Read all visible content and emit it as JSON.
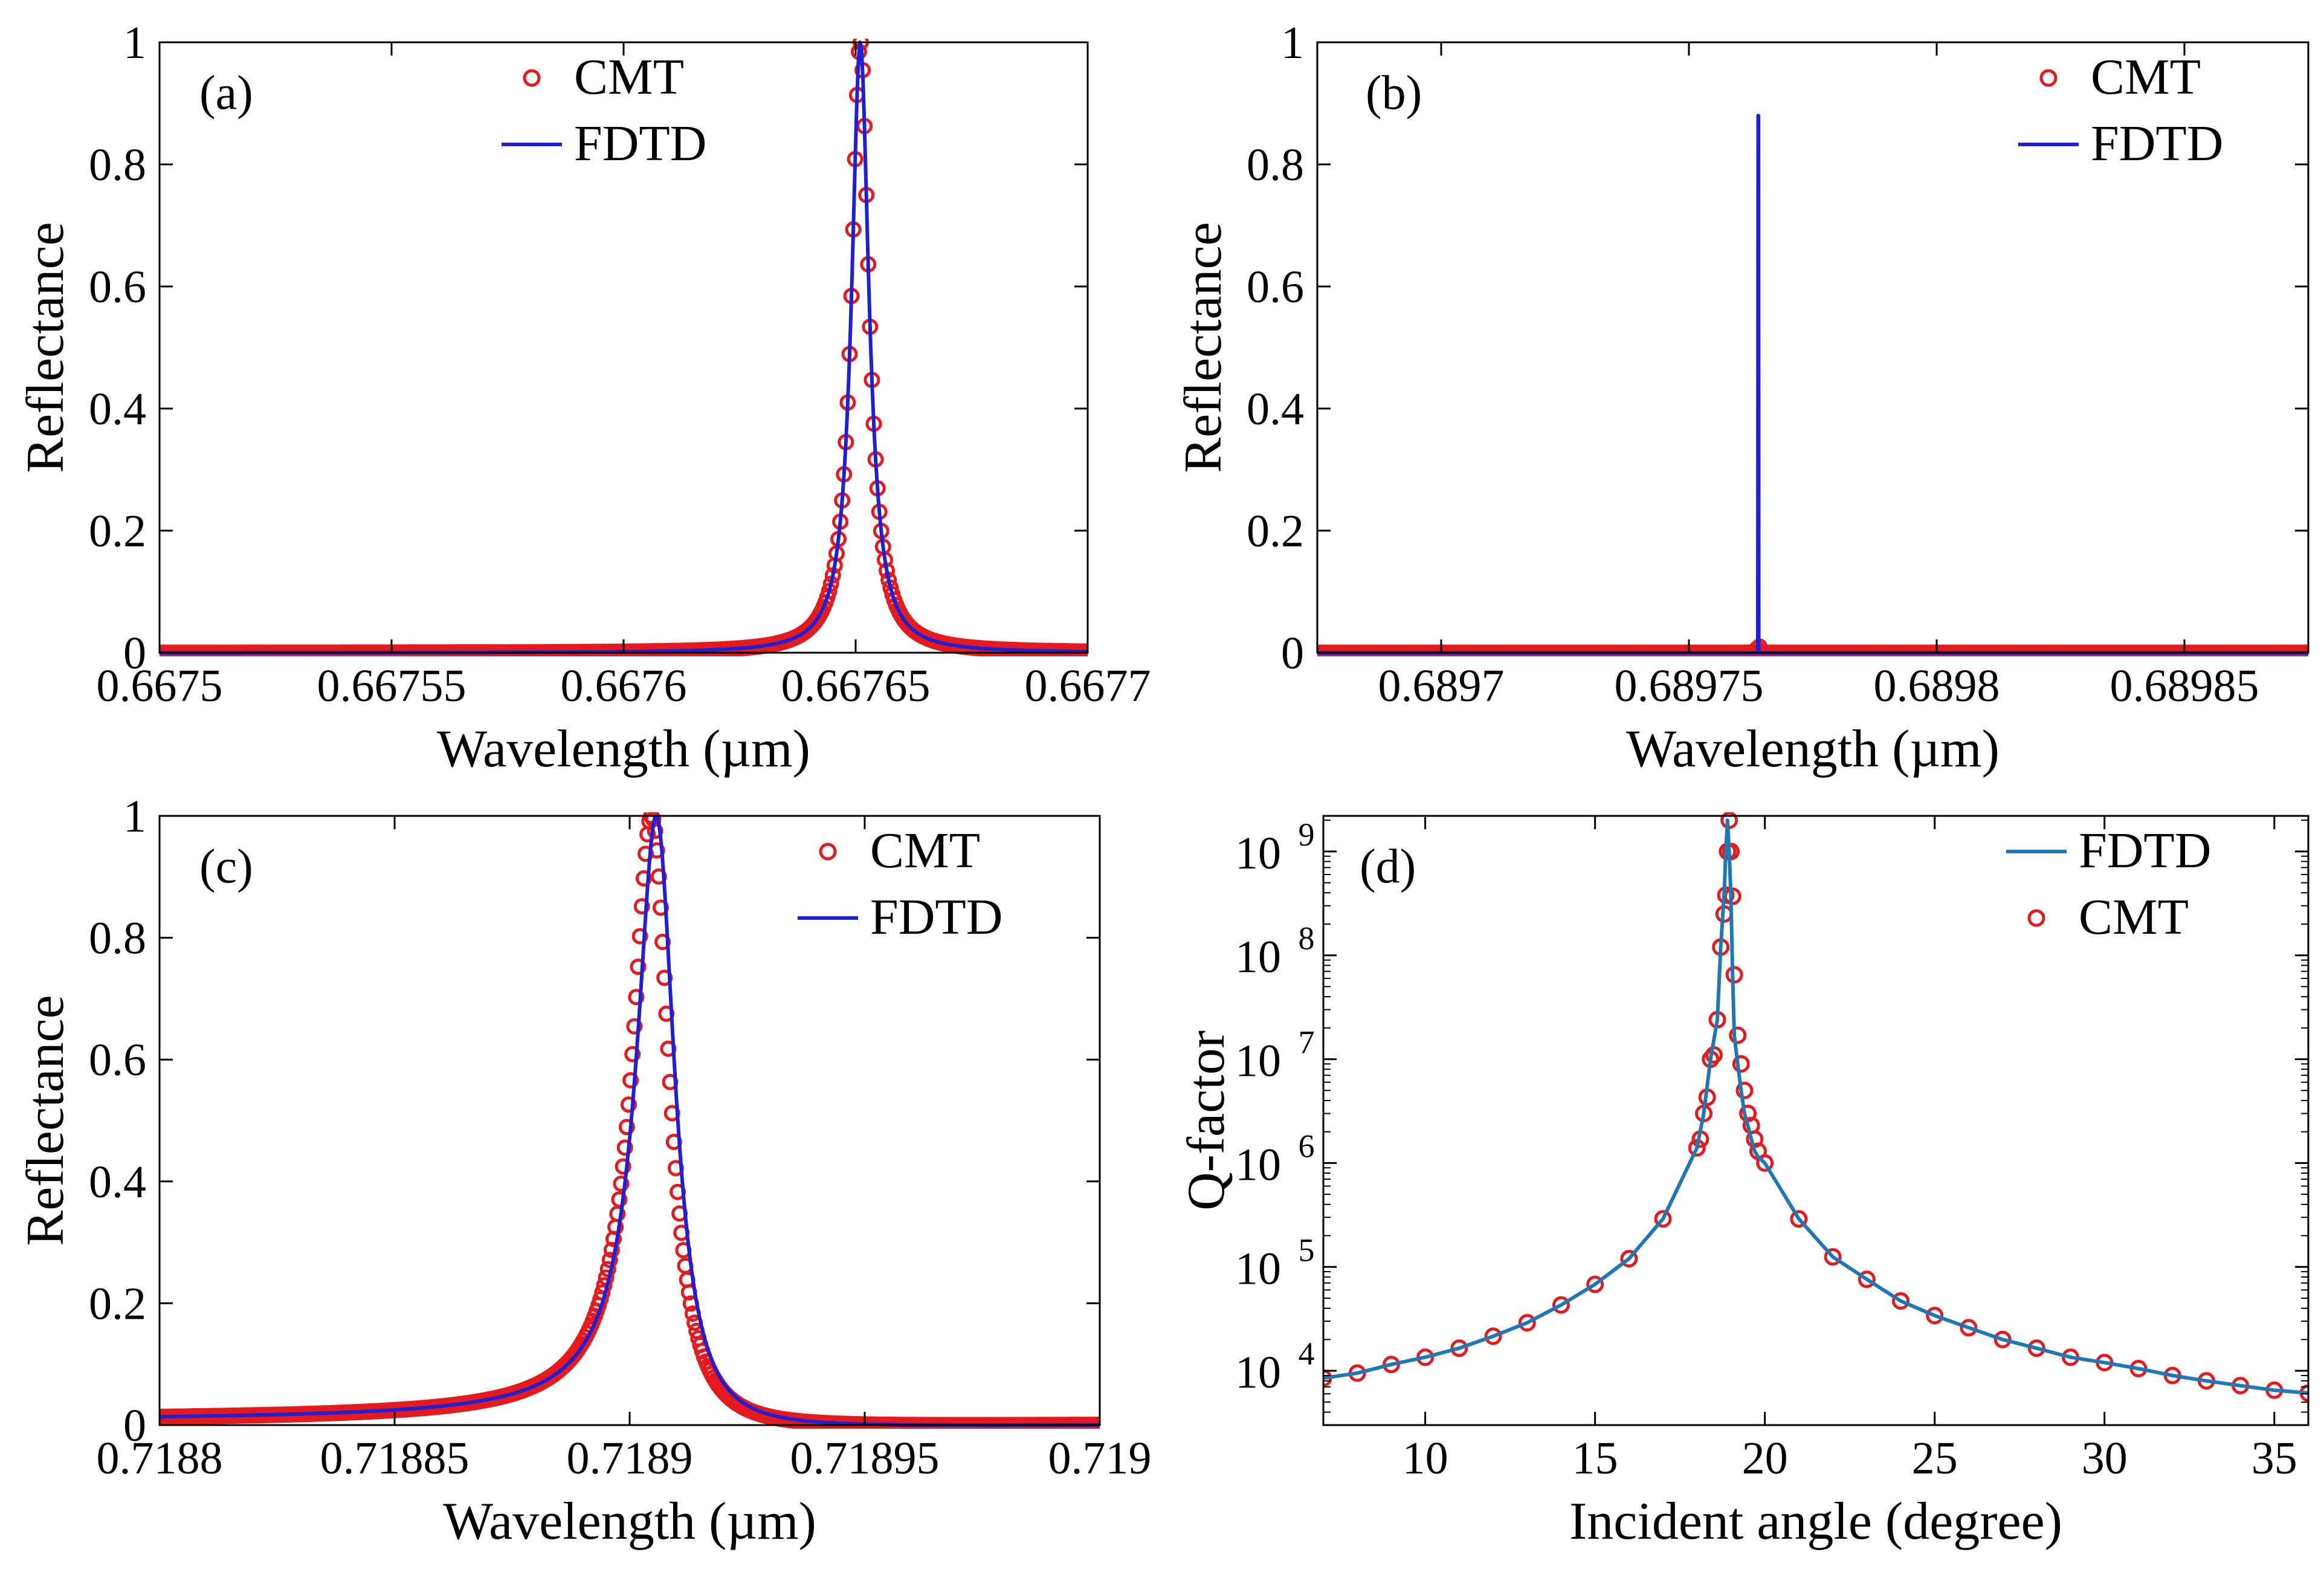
{
  "figure": {
    "background": "#ffffff"
  },
  "colors": {
    "cmt": "#e41a1c",
    "fdtd_blue": "#1f1fd6",
    "fdtd_teal": "#1f77b4",
    "axis": "#000000"
  },
  "chart_data": [
    {
      "panel_label": "(a)",
      "type": "line",
      "xlabel": "Wavelength (µm)",
      "ylabel": "Reflectance",
      "xlim": [
        0.6675,
        0.6677
      ],
      "ylim": [
        0,
        1
      ],
      "xticks": [
        0.6675,
        0.66755,
        0.6676,
        0.66765,
        0.6677
      ],
      "xtick_labels": [
        "0.6675",
        "0.66755",
        "0.6676",
        "0.66765",
        "0.6677"
      ],
      "yticks": [
        0,
        0.2,
        0.4,
        0.6,
        0.8,
        1
      ],
      "ytick_labels": [
        "0",
        "0.2",
        "0.4",
        "0.6",
        "0.8",
        "1"
      ],
      "legend": {
        "position": "top-center",
        "entries": [
          "CMT",
          "FDTD"
        ]
      },
      "series": [
        {
          "name": "CMT",
          "style": "markers",
          "model": "lorentzian",
          "center": 0.667651,
          "fwhm": 4.5e-06,
          "peak": 1,
          "baseline": 0,
          "xrange": [
            0.6675,
            0.6677
          ],
          "count": 500
        },
        {
          "name": "FDTD",
          "style": "line",
          "model": "lorentzian",
          "center": 0.667651,
          "fwhm": 4.5e-06,
          "peak": 1,
          "baseline": 0,
          "xrange": [
            0.6675,
            0.6677
          ],
          "count": 600
        }
      ]
    },
    {
      "panel_label": "(b)",
      "type": "line",
      "xlabel": "Wavelength (µm)",
      "ylabel": "Reflectance",
      "xlim": [
        0.689675,
        0.689875
      ],
      "ylim": [
        0,
        1
      ],
      "xticks": [
        0.6897,
        0.68975,
        0.6898,
        0.68985
      ],
      "xtick_labels": [
        "0.6897",
        "0.68975",
        "0.6898",
        "0.68985"
      ],
      "yticks": [
        0,
        0.2,
        0.4,
        0.6,
        0.8,
        1
      ],
      "ytick_labels": [
        "0",
        "0.2",
        "0.4",
        "0.6",
        "0.8",
        "1"
      ],
      "legend": {
        "position": "top-right",
        "entries": [
          "CMT",
          "FDTD"
        ]
      },
      "series": [
        {
          "name": "CMT",
          "style": "markers",
          "model": "lorentzian",
          "center": 0.689764,
          "fwhm": 1e-07,
          "peak": 0.01,
          "baseline": 0,
          "xrange": [
            0.689675,
            0.689875
          ],
          "count": 400
        },
        {
          "name": "FDTD",
          "style": "line",
          "model": "spike",
          "center": 0.689764,
          "peak": 0.88,
          "baseline": 0,
          "xrange": [
            0.689675,
            0.689875
          ]
        }
      ]
    },
    {
      "panel_label": "(c)",
      "type": "line",
      "xlabel": "Wavelength (µm)",
      "ylabel": "Reflectance",
      "xlim": [
        0.7188,
        0.719
      ],
      "ylim": [
        0,
        1
      ],
      "xticks": [
        0.7188,
        0.71885,
        0.7189,
        0.71895,
        0.719
      ],
      "xtick_labels": [
        "0.7188",
        "0.71885",
        "0.7189",
        "0.71895",
        "0.719"
      ],
      "yticks": [
        0,
        0.2,
        0.4,
        0.6,
        0.8,
        1
      ],
      "ytick_labels": [
        "0",
        "0.2",
        "0.4",
        "0.6",
        "0.8",
        "1"
      ],
      "legend": {
        "position": "top-right",
        "entries": [
          "CMT",
          "FDTD"
        ]
      },
      "series": [
        {
          "name": "CMT",
          "style": "markers",
          "model": "fano",
          "center": 0.718905,
          "fwhm": 9.5e-06,
          "q": -14,
          "peak": 1,
          "baseline": 0,
          "xrange": [
            0.7188,
            0.719
          ],
          "count": 500
        },
        {
          "name": "FDTD",
          "style": "line",
          "model": "fano",
          "center": 0.718906,
          "fwhm": 9.8e-06,
          "q": -14,
          "peak": 1,
          "baseline": 0,
          "xrange": [
            0.7188,
            0.719
          ],
          "count": 600
        }
      ]
    },
    {
      "panel_label": "(d)",
      "type": "line",
      "xlabel": "Incident angle (degree)",
      "ylabel": "Q-factor",
      "xlim": [
        7,
        36
      ],
      "ylim": [
        3000,
        2200000000
      ],
      "yscale": "log",
      "xticks": [
        10,
        15,
        20,
        25,
        30,
        35
      ],
      "xtick_labels": [
        "10",
        "15",
        "20",
        "25",
        "30",
        "35"
      ],
      "yticks": [
        10000,
        100000,
        1000000,
        10000000,
        100000000,
        1000000000
      ],
      "ytick_labels": [
        "10",
        "10",
        "10",
        "10",
        "10",
        "10"
      ],
      "ytick_exponents": [
        "4",
        "5",
        "6",
        "7",
        "8",
        "9"
      ],
      "legend": {
        "position": "top-right",
        "entries": [
          "FDTD",
          "CMT"
        ]
      },
      "series": [
        {
          "name": "FDTD",
          "style": "line",
          "x": [
            7,
            8,
            9,
            10,
            11,
            12,
            13,
            14,
            15,
            16,
            17,
            18,
            18.2,
            18.4,
            18.6,
            18.7,
            18.8,
            18.85,
            18.9,
            18.95,
            19,
            19.05,
            19.1,
            19.2,
            19.3,
            19.4,
            19.5,
            19.6,
            19.7,
            19.8,
            20,
            21,
            22,
            23,
            24,
            25,
            26,
            27,
            28,
            29,
            30,
            31,
            32,
            33,
            34,
            35,
            36
          ],
          "y": [
            8500,
            9500,
            11500,
            13500,
            16500,
            21500,
            29000,
            43000,
            68000,
            120000,
            290000,
            1400000,
            3000000,
            10000000,
            24000000,
            120000000,
            380000000,
            1000000000,
            2000000000,
            1000000000,
            370000000,
            65000000,
            17000000,
            9000000,
            5000000,
            3000000,
            2300000,
            1700000,
            1300000,
            1150000,
            1000000,
            290000,
            125000,
            76000,
            47000,
            34000,
            26000,
            20000,
            16500,
            13500,
            12000,
            10500,
            9000,
            8000,
            7200,
            6500,
            6100
          ]
        },
        {
          "name": "CMT",
          "style": "markers",
          "x": [
            7,
            8,
            9,
            10,
            11,
            12,
            13,
            14,
            15,
            16,
            17,
            18,
            18.1,
            18.2,
            18.3,
            18.4,
            18.5,
            18.6,
            18.7,
            18.8,
            18.85,
            18.9,
            18.95,
            19,
            19.05,
            19.1,
            19.2,
            19.3,
            19.4,
            19.5,
            19.6,
            19.7,
            19.8,
            20,
            21,
            22,
            23,
            24,
            25,
            26,
            27,
            28,
            29,
            30,
            31,
            32,
            33,
            34,
            35,
            36
          ],
          "y": [
            8500,
            9500,
            11500,
            13500,
            16500,
            21500,
            29000,
            43000,
            68000,
            120000,
            290000,
            1400000,
            1700000,
            3000000,
            4300000,
            10000000,
            11000000,
            24000000,
            120000000,
            250000000,
            380000000,
            1000000000,
            2000000000,
            1000000000,
            370000000,
            65000000,
            17000000,
            9000000,
            5000000,
            3000000,
            2300000,
            1700000,
            1300000,
            1000000,
            290000,
            125000,
            76000,
            47000,
            34000,
            26000,
            20000,
            16500,
            13500,
            12000,
            10500,
            9000,
            8000,
            7200,
            6500,
            6100
          ]
        }
      ]
    }
  ]
}
